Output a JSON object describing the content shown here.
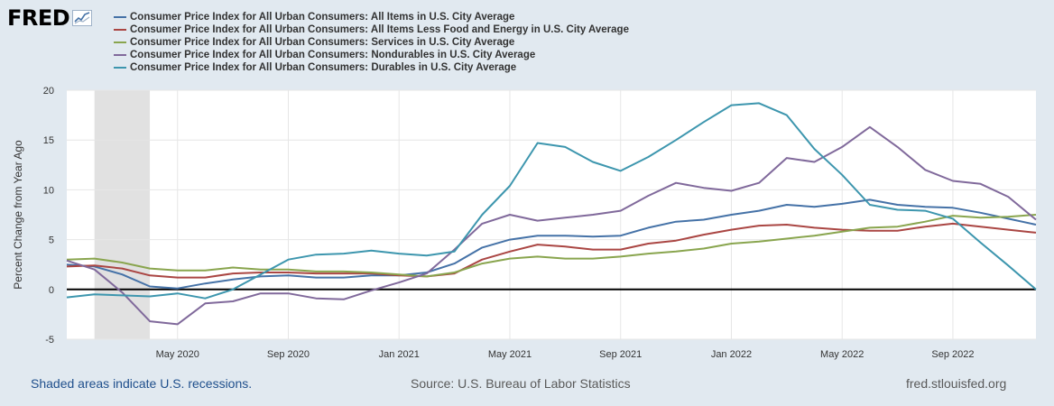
{
  "logo": {
    "text": "FRED",
    "icon": "line-chart-icon"
  },
  "colors": {
    "all_items": "#4572a7",
    "core": "#aa4643",
    "services": "#89a54e",
    "nondurables": "#80699b",
    "durables": "#3d96ae",
    "recession": "#e1e1e1",
    "plot_bg": "#ffffff",
    "grid": "#e6e6e6",
    "zero_line": "#000000"
  },
  "chart_data": {
    "type": "line",
    "ylabel": "Percent Change from Year Ago",
    "xlabel": "",
    "ylim": [
      -5,
      20
    ],
    "yticks": [
      -5,
      0,
      5,
      10,
      15,
      20
    ],
    "x": [
      "2020-01",
      "2020-02",
      "2020-03",
      "2020-04",
      "2020-05",
      "2020-06",
      "2020-07",
      "2020-08",
      "2020-09",
      "2020-10",
      "2020-11",
      "2020-12",
      "2021-01",
      "2021-02",
      "2021-03",
      "2021-04",
      "2021-05",
      "2021-06",
      "2021-07",
      "2021-08",
      "2021-09",
      "2021-10",
      "2021-11",
      "2021-12",
      "2022-01",
      "2022-02",
      "2022-03",
      "2022-04",
      "2022-05",
      "2022-06",
      "2022-07",
      "2022-08",
      "2022-09",
      "2022-10",
      "2022-11",
      "2022-12"
    ],
    "xticks": [
      {
        "label": "May 2020",
        "index": 4
      },
      {
        "label": "Sep 2020",
        "index": 8
      },
      {
        "label": "Jan 2021",
        "index": 12
      },
      {
        "label": "May 2021",
        "index": 16
      },
      {
        "label": "Sep 2021",
        "index": 20
      },
      {
        "label": "Jan 2022",
        "index": 24
      },
      {
        "label": "May 2022",
        "index": 28
      },
      {
        "label": "Sep 2022",
        "index": 32
      }
    ],
    "recession": {
      "start_index": 1,
      "end_index": 3
    },
    "series": [
      {
        "key": "all_items",
        "name": "Consumer Price Index for All Urban Consumers: All Items in U.S. City Average",
        "values": [
          2.5,
          2.3,
          1.5,
          0.3,
          0.1,
          0.6,
          1.0,
          1.3,
          1.4,
          1.2,
          1.2,
          1.4,
          1.4,
          1.7,
          2.6,
          4.2,
          5.0,
          5.4,
          5.4,
          5.3,
          5.4,
          6.2,
          6.8,
          7.0,
          7.5,
          7.9,
          8.5,
          8.3,
          8.6,
          9.0,
          8.5,
          8.3,
          8.2,
          7.7,
          7.1,
          6.5
        ]
      },
      {
        "key": "core",
        "name": "Consumer Price Index for All Urban Consumers: All Items Less Food and Energy in U.S. City Average",
        "values": [
          2.3,
          2.4,
          2.1,
          1.4,
          1.2,
          1.2,
          1.6,
          1.7,
          1.7,
          1.6,
          1.6,
          1.6,
          1.4,
          1.3,
          1.6,
          3.0,
          3.8,
          4.5,
          4.3,
          4.0,
          4.0,
          4.6,
          4.9,
          5.5,
          6.0,
          6.4,
          6.5,
          6.2,
          6.0,
          5.9,
          5.9,
          6.3,
          6.6,
          6.3,
          6.0,
          5.7
        ]
      },
      {
        "key": "services",
        "name": "Consumer Price Index for All Urban Consumers: Services in U.S. City Average",
        "values": [
          3.0,
          3.1,
          2.7,
          2.1,
          1.9,
          1.9,
          2.2,
          2.0,
          2.0,
          1.8,
          1.8,
          1.7,
          1.5,
          1.3,
          1.7,
          2.6,
          3.1,
          3.3,
          3.1,
          3.1,
          3.3,
          3.6,
          3.8,
          4.1,
          4.6,
          4.8,
          5.1,
          5.4,
          5.8,
          6.2,
          6.3,
          6.8,
          7.4,
          7.2,
          7.3,
          7.5
        ]
      },
      {
        "key": "nondurables",
        "name": "Consumer Price Index for All Urban Consumers: Nondurables in U.S. City Average",
        "values": [
          2.9,
          2.0,
          -0.3,
          -3.2,
          -3.5,
          -1.4,
          -1.2,
          -0.4,
          -0.4,
          -0.9,
          -1.0,
          -0.1,
          0.7,
          1.6,
          4.0,
          6.6,
          7.5,
          6.9,
          7.2,
          7.5,
          7.9,
          9.4,
          10.7,
          10.2,
          9.9,
          10.7,
          13.2,
          12.8,
          14.3,
          16.3,
          14.3,
          12.0,
          10.9,
          10.6,
          9.3,
          7.0
        ]
      },
      {
        "key": "durables",
        "name": "Consumer Price Index for All Urban Consumers: Durables in U.S. City Average",
        "values": [
          -0.8,
          -0.5,
          -0.6,
          -0.7,
          -0.4,
          -0.9,
          0.0,
          1.5,
          3.0,
          3.5,
          3.6,
          3.9,
          3.6,
          3.4,
          3.8,
          7.5,
          10.4,
          14.7,
          14.3,
          12.8,
          11.9,
          13.3,
          15.0,
          16.8,
          18.5,
          18.7,
          17.5,
          14.1,
          11.5,
          8.5,
          8.0,
          7.9,
          7.1,
          4.7,
          2.4,
          0.0
        ]
      }
    ]
  },
  "footer": {
    "note": "Shaded areas indicate U.S. recessions.",
    "source": "Source: U.S. Bureau of Labor Statistics",
    "url": "fred.stlouisfed.org"
  }
}
